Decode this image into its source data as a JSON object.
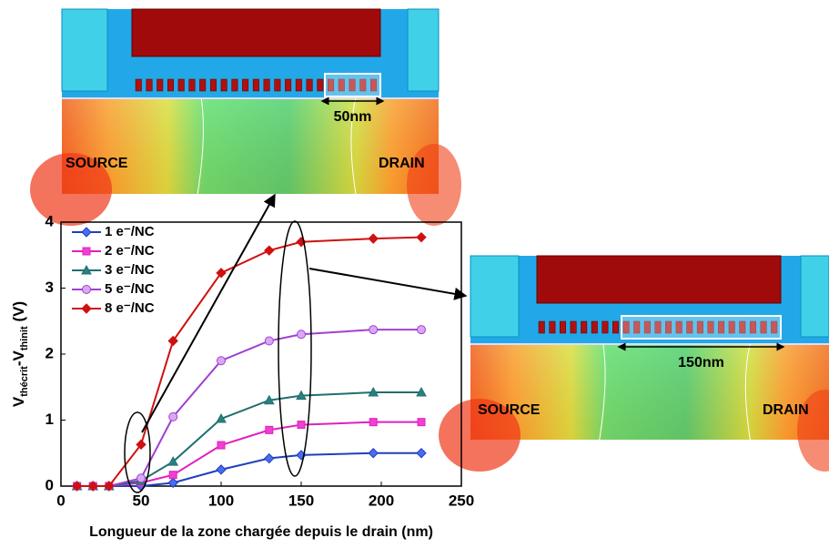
{
  "chart_data": {
    "type": "line",
    "x_label": "Longueur de la zone chargée depuis le drain (nm)",
    "y_label": [
      "V",
      "thécrit",
      "-V",
      "thinit",
      " (V)"
    ],
    "x": [
      10,
      20,
      30,
      50,
      70,
      100,
      130,
      150,
      195,
      225
    ],
    "xlim": [
      0,
      250
    ],
    "xticks": [
      0,
      50,
      100,
      150,
      200,
      250
    ],
    "ylim": [
      0,
      4
    ],
    "yticks": [
      0,
      1,
      2,
      3,
      4
    ],
    "legend": "upper left",
    "series": [
      {
        "name": "1 e⁻/NC",
        "color": "#1f3fbf",
        "fill": "#4a6cf0",
        "marker": "diamond",
        "values": [
          0,
          0,
          0,
          0,
          0.05,
          0.25,
          0.42,
          0.47,
          0.5,
          0.5
        ]
      },
      {
        "name": "2 e⁻/NC",
        "color": "#e020c0",
        "fill": "#f040d0",
        "marker": "square",
        "values": [
          0,
          0,
          0,
          0.05,
          0.17,
          0.62,
          0.85,
          0.93,
          0.97,
          0.97
        ]
      },
      {
        "name": "3 e⁻/NC",
        "color": "#1f7070",
        "fill": "#2a8080",
        "marker": "triangle",
        "values": [
          0,
          0,
          0,
          0.08,
          0.37,
          1.02,
          1.3,
          1.37,
          1.42,
          1.42
        ]
      },
      {
        "name": "5 e⁻/NC",
        "color": "#a040d0",
        "fill": "#d8a8f4",
        "marker": "circle",
        "values": [
          0,
          0,
          0,
          0.12,
          1.05,
          1.9,
          2.2,
          2.3,
          2.37,
          2.37
        ]
      },
      {
        "name": "8 e⁻/NC",
        "color": "#d01010",
        "fill": "#d01010",
        "marker": "diamond",
        "values": [
          0,
          0,
          0,
          0.63,
          2.2,
          3.23,
          3.57,
          3.7,
          3.75,
          3.77
        ]
      }
    ]
  },
  "images": [
    {
      "source": "SOURCE",
      "drain": "DRAIN",
      "length": "50nm"
    },
    {
      "source": "SOURCE",
      "drain": "DRAIN",
      "length": "150nm"
    }
  ]
}
